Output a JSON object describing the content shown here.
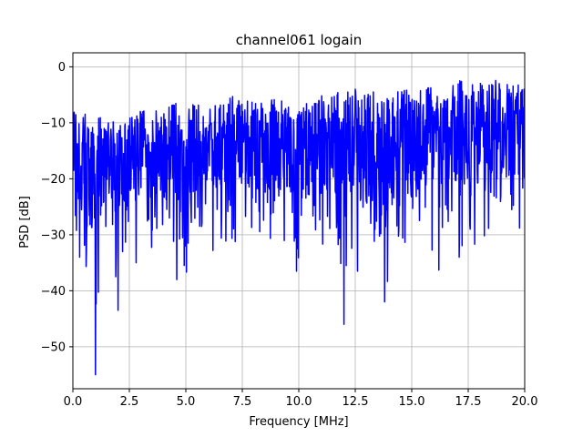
{
  "chart_data": {
    "type": "line",
    "title": "channel061 logain",
    "xlabel": "Frequency [MHz]",
    "ylabel": "PSD [dB]",
    "xlim": [
      0,
      20
    ],
    "ylim": [
      -57.5,
      2.5
    ],
    "grid": true,
    "xticks": [
      0,
      2.5,
      5,
      7.5,
      10,
      12.5,
      15,
      17.5,
      20
    ],
    "xtick_labels": [
      "0.0",
      "2.5",
      "5.0",
      "7.5",
      "10.0",
      "12.5",
      "15.0",
      "17.5",
      "20.0"
    ],
    "yticks": [
      0,
      -10,
      -20,
      -30,
      -40,
      -50
    ],
    "ytick_labels": [
      "0",
      "−10",
      "−20",
      "−30",
      "−40",
      "−50"
    ],
    "series": [
      {
        "color": "#0000ff",
        "x": [
          0,
          0.5,
          1.0,
          1.5,
          2.0,
          2.5,
          3.0,
          3.5,
          4.0,
          4.5,
          5.0,
          5.5,
          6.0,
          6.5,
          7.0,
          7.5,
          8.0,
          8.5,
          9.0,
          9.5,
          10.0,
          10.5,
          11.0,
          11.5,
          12.0,
          12.5,
          13.0,
          13.5,
          14.0,
          14.5,
          15.0,
          15.5,
          16.0,
          16.5,
          17.0,
          17.5,
          18.0,
          18.5,
          19.0,
          19.5,
          20.0
        ],
        "upper": [
          -8,
          -8,
          -8,
          -10,
          -9,
          -8,
          -7,
          -8,
          -7,
          -6,
          -7,
          -6,
          -7,
          -6,
          -5,
          -6,
          -6,
          -6,
          -5,
          -5,
          -6,
          -6,
          -5,
          -5,
          -4,
          -4,
          -5,
          -4,
          -5,
          -4,
          -4,
          -4,
          -3,
          -3,
          -1,
          -3,
          -3,
          -2,
          -3,
          -3,
          -3
        ],
        "lower": [
          -30,
          -34,
          -44,
          -30,
          -37,
          -30,
          -33,
          -33,
          -30,
          -32,
          -38,
          -30,
          -28,
          -31,
          -32,
          -30,
          -31,
          -30,
          -33,
          -31,
          -36,
          -32,
          -33,
          -32,
          -42,
          -34,
          -36,
          -35,
          -39,
          -30,
          -35,
          -30,
          -35,
          -30,
          -32,
          -32,
          -32,
          -30,
          -29,
          -30,
          -30
        ],
        "dips": [
          {
            "x": 1.0,
            "y": -55
          },
          {
            "x": 2.0,
            "y": -43.5
          },
          {
            "x": 1.9,
            "y": -37.5
          },
          {
            "x": 4.6,
            "y": -38
          },
          {
            "x": 12.0,
            "y": -46
          },
          {
            "x": 13.8,
            "y": -42
          },
          {
            "x": 9.9,
            "y": -36.5
          },
          {
            "x": 12.1,
            "y": -35.5
          },
          {
            "x": 0.3,
            "y": -34
          },
          {
            "x": 2.8,
            "y": -35
          },
          {
            "x": 12.6,
            "y": -36.5
          },
          {
            "x": 16.2,
            "y": -36.3
          },
          {
            "x": 17.1,
            "y": -34
          },
          {
            "x": 0.6,
            "y": -33
          },
          {
            "x": 2.2,
            "y": -33
          },
          {
            "x": 6.2,
            "y": -32.8
          }
        ]
      }
    ]
  }
}
